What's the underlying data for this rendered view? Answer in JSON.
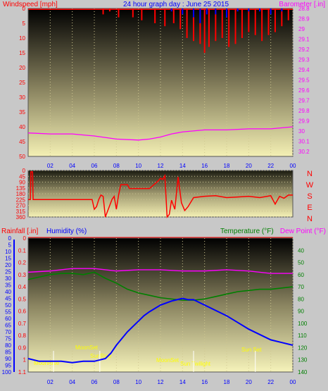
{
  "header": {
    "left_label": "Windspeed [mph]",
    "title": "24 hour graph day : June 25 2015",
    "right_label": "Barometer [.in]"
  },
  "colors": {
    "wind_speed": "#ff0000",
    "wind_gust": "#0000ff",
    "barometer": "#ff00ff",
    "direction": "#ff0000",
    "humidity": "#0000ff",
    "temperature": "#008000",
    "dewpoint": "#ff00ff",
    "rain": "#ff0000",
    "sun_moon_text": "#ffff00"
  },
  "x_ticks": [
    "02",
    "04",
    "06",
    "08",
    "10",
    "12",
    "14",
    "16",
    "18",
    "20",
    "22",
    "00"
  ],
  "compass": [
    "N",
    "W",
    "S",
    "E",
    "N"
  ],
  "bottom": {
    "rain_label": "Rainfall [.in]",
    "humidity_label": "Humidity (%)",
    "temp_label": "Temperature (°F)",
    "dew_label": "Dew Point (°F)",
    "annotations": {
      "moon_rise": "MoonRise",
      "sun_rise": "SunRise",
      "moon_set_top": "MoonSet",
      "sun_set": "Sun Set",
      "moon_set_bottom": "MoonSet",
      "twilight": "Sun Twilight"
    }
  },
  "chart_data": [
    {
      "type": "line",
      "title": "24 hour graph day : June 25 2015",
      "xlabel": "",
      "ylabel": "Windspeed [mph]",
      "y2label": "Barometer [.in]",
      "x_ticks": [
        "02",
        "04",
        "06",
        "08",
        "10",
        "12",
        "14",
        "16",
        "18",
        "20",
        "22",
        "00"
      ],
      "ylim": [
        0,
        50
      ],
      "yticks": [
        0,
        5,
        10,
        15,
        20,
        25,
        30,
        35,
        40,
        45,
        50
      ],
      "y2lim": [
        28.8,
        30.25
      ],
      "y2ticks": [
        28.8,
        28.9,
        29,
        29.1,
        29.2,
        29.3,
        29.4,
        29.5,
        29.6,
        29.7,
        29.8,
        29.9,
        30,
        30.1,
        30.2
      ],
      "series": [
        {
          "name": "Barometer [.in]",
          "axis": "right",
          "x": [
            0,
            2,
            4,
            6,
            8,
            10,
            11,
            12,
            13,
            14,
            16,
            18,
            20,
            22,
            24
          ],
          "values": [
            30.02,
            30.03,
            30.03,
            30.05,
            30.08,
            30.09,
            30.08,
            30.06,
            30.03,
            30.01,
            29.99,
            29.99,
            29.98,
            29.98,
            29.96
          ]
        },
        {
          "name": "Windspeed [mph]",
          "axis": "left",
          "x": [
            0,
            6.8,
            7.4,
            8.2,
            9.5,
            10.3,
            11.5,
            12.4,
            13.2,
            13.8,
            14.4,
            15.0,
            15.6,
            16.0,
            16.4,
            17.0,
            17.6,
            18.2,
            18.8,
            19.4,
            20.0,
            20.6,
            21.2,
            21.8,
            22.4,
            23.0,
            23.6
          ],
          "values": [
            0,
            2,
            1,
            3,
            3,
            4,
            5,
            6,
            5,
            7,
            10,
            11,
            12,
            15,
            13,
            11,
            10,
            13,
            12,
            10,
            8,
            9,
            11,
            9,
            8,
            6,
            4
          ]
        },
        {
          "name": "Wind gust",
          "axis": "left",
          "x": [
            13.0,
            14.0,
            15.0,
            15.6,
            16.2,
            17.0,
            18.0,
            19.0,
            20.0,
            21.0,
            22.0,
            23.0
          ],
          "values": [
            1,
            2,
            3,
            5,
            2,
            2,
            3,
            1,
            1,
            1,
            2,
            1
          ]
        }
      ]
    },
    {
      "type": "line",
      "title": "",
      "ylabel": "Wind direction",
      "ylim": [
        0,
        360
      ],
      "yticks": [
        0,
        45,
        90,
        135,
        180,
        225,
        270,
        315,
        360
      ],
      "series": [
        {
          "name": "Wind direction",
          "x": [
            0,
            0.2,
            0.25,
            0.4,
            0.45,
            5.8,
            6.0,
            6.2,
            6.4,
            6.6,
            6.8,
            7.0,
            7.6,
            7.8,
            8.0,
            8.2,
            8.4,
            9.0,
            9.2,
            9.4,
            11.0,
            11.8,
            12.0,
            12.2,
            12.4,
            12.6,
            12.8,
            13.0,
            13.3,
            13.6,
            13.9,
            14.2,
            14.5,
            15.0,
            16.0,
            17.0,
            18.0,
            19.0,
            20.0,
            21.0,
            22.0,
            22.4,
            22.8,
            23.2,
            23.6,
            24.0
          ],
          "values": [
            225,
            225,
            10,
            10,
            225,
            225,
            300,
            280,
            225,
            190,
            200,
            360,
            225,
            200,
            300,
            190,
            110,
            110,
            140,
            140,
            140,
            80,
            60,
            70,
            40,
            360,
            340,
            230,
            300,
            50,
            250,
            310,
            280,
            210,
            200,
            195,
            210,
            205,
            200,
            210,
            195,
            260,
            200,
            215,
            190,
            190
          ]
        }
      ]
    },
    {
      "type": "line",
      "title": "",
      "ylabel": "Humidity (%)",
      "y2label": "Temperature (°F)",
      "ylim": [
        0,
        100
      ],
      "yticks": [
        0,
        5,
        10,
        15,
        20,
        25,
        30,
        35,
        40,
        45,
        50,
        55,
        60,
        65,
        70,
        75,
        80,
        85,
        90,
        95,
        100
      ],
      "rain_ylim": [
        0,
        1.1
      ],
      "rain_yticks": [
        0,
        0.1,
        0.2,
        0.3,
        0.4,
        0.5,
        0.6,
        0.7,
        0.8,
        0.9,
        1,
        1.1
      ],
      "y2lim": [
        30,
        140
      ],
      "y2ticks": [
        40,
        50,
        60,
        70,
        80,
        90,
        100,
        110,
        120,
        130,
        140
      ],
      "series": [
        {
          "name": "Humidity (%)",
          "axis": "left",
          "x": [
            0,
            1,
            2,
            3,
            4,
            5,
            6,
            7,
            7.5,
            8,
            9,
            10,
            10.5,
            11,
            12,
            13,
            13.5,
            14,
            14.5,
            15,
            16,
            17,
            18,
            19,
            20,
            21,
            22,
            23,
            24
          ],
          "values": [
            90,
            92,
            92,
            92,
            93,
            92,
            92,
            90,
            86,
            80,
            70,
            62,
            58,
            55,
            50,
            47,
            46,
            45,
            46,
            46,
            50,
            54,
            58,
            63,
            68,
            72,
            76,
            78,
            80
          ]
        },
        {
          "name": "Temperature (°F)",
          "axis": "right",
          "x": [
            0,
            1,
            2,
            3,
            4,
            5,
            6,
            7,
            8,
            9,
            10,
            11,
            12,
            13,
            14,
            15,
            16,
            17,
            18,
            19,
            20,
            21,
            22,
            23,
            24
          ],
          "values": [
            64,
            62,
            60,
            59,
            59,
            60,
            58,
            63,
            67,
            72,
            75,
            77,
            79,
            80,
            81,
            81,
            80,
            78,
            76,
            74,
            73,
            72,
            72,
            71,
            70
          ]
        },
        {
          "name": "Dew Point (°F)",
          "axis": "right",
          "x": [
            0,
            2,
            4,
            6,
            8,
            10,
            12,
            14,
            16,
            18,
            20,
            22,
            24
          ],
          "values": [
            58,
            57,
            55,
            55,
            57,
            56,
            56,
            57,
            57,
            56,
            57,
            59,
            59
          ]
        }
      ]
    }
  ]
}
